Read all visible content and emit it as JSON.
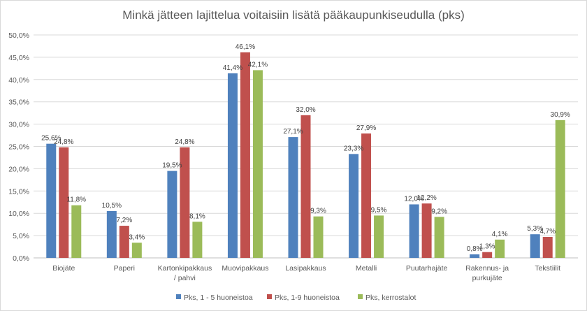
{
  "chart_data": {
    "type": "bar",
    "title": "Minkä jätteen lajittelua voitaisiin lisätä pääkaupunkiseudulla (pks)",
    "xlabel": "",
    "ylabel": "",
    "ylim": [
      0,
      50
    ],
    "yticks": [
      0,
      5,
      10,
      15,
      20,
      25,
      30,
      35,
      40,
      45,
      50
    ],
    "ytick_labels": [
      "0,0%",
      "5,0%",
      "10,0%",
      "15,0%",
      "20,0%",
      "25,0%",
      "30,0%",
      "35,0%",
      "40,0%",
      "45,0%",
      "50,0%"
    ],
    "grid": true,
    "legend_position": "bottom",
    "categories": [
      [
        "Biojäte"
      ],
      [
        "Paperi"
      ],
      [
        "Kartonkipakkaus",
        "/ pahvi"
      ],
      [
        "Muovipakkaus"
      ],
      [
        "Lasipakkaus"
      ],
      [
        "Metalli"
      ],
      [
        "Puutarhajäte"
      ],
      [
        "Rakennus- ja",
        "purkujäte"
      ],
      [
        "Tekstiilit"
      ]
    ],
    "series": [
      {
        "name": "Pks, 1 - 5 huoneistoa",
        "color": "#4f81bd",
        "values": [
          25.6,
          10.5,
          19.5,
          41.4,
          27.1,
          23.3,
          12.0,
          0.8,
          5.3
        ],
        "labels": [
          "25,6%",
          "10,5%",
          "19,5%",
          "41,4%",
          "27,1%",
          "23,3%",
          "12,0%",
          "0,8%",
          "5,3%"
        ]
      },
      {
        "name": "Pks, 1-9 huoneistoa",
        "color": "#c0504d",
        "values": [
          24.8,
          7.2,
          24.8,
          46.1,
          32.0,
          27.9,
          12.2,
          1.3,
          4.7
        ],
        "labels": [
          "24,8%",
          "7,2%",
          "24,8%",
          "46,1%",
          "32,0%",
          "27,9%",
          "12,2%",
          "1,3%",
          "4,7%"
        ]
      },
      {
        "name": "Pks, kerrostalot",
        "color": "#9bbb59",
        "values": [
          11.8,
          3.4,
          8.1,
          42.1,
          9.3,
          9.5,
          9.2,
          4.1,
          30.9
        ],
        "labels": [
          "11,8%",
          "3,4%",
          "8,1%",
          "42,1%",
          "9,3%",
          "9,5%",
          "9,2%",
          "4,1%",
          "30,9%"
        ]
      }
    ]
  }
}
